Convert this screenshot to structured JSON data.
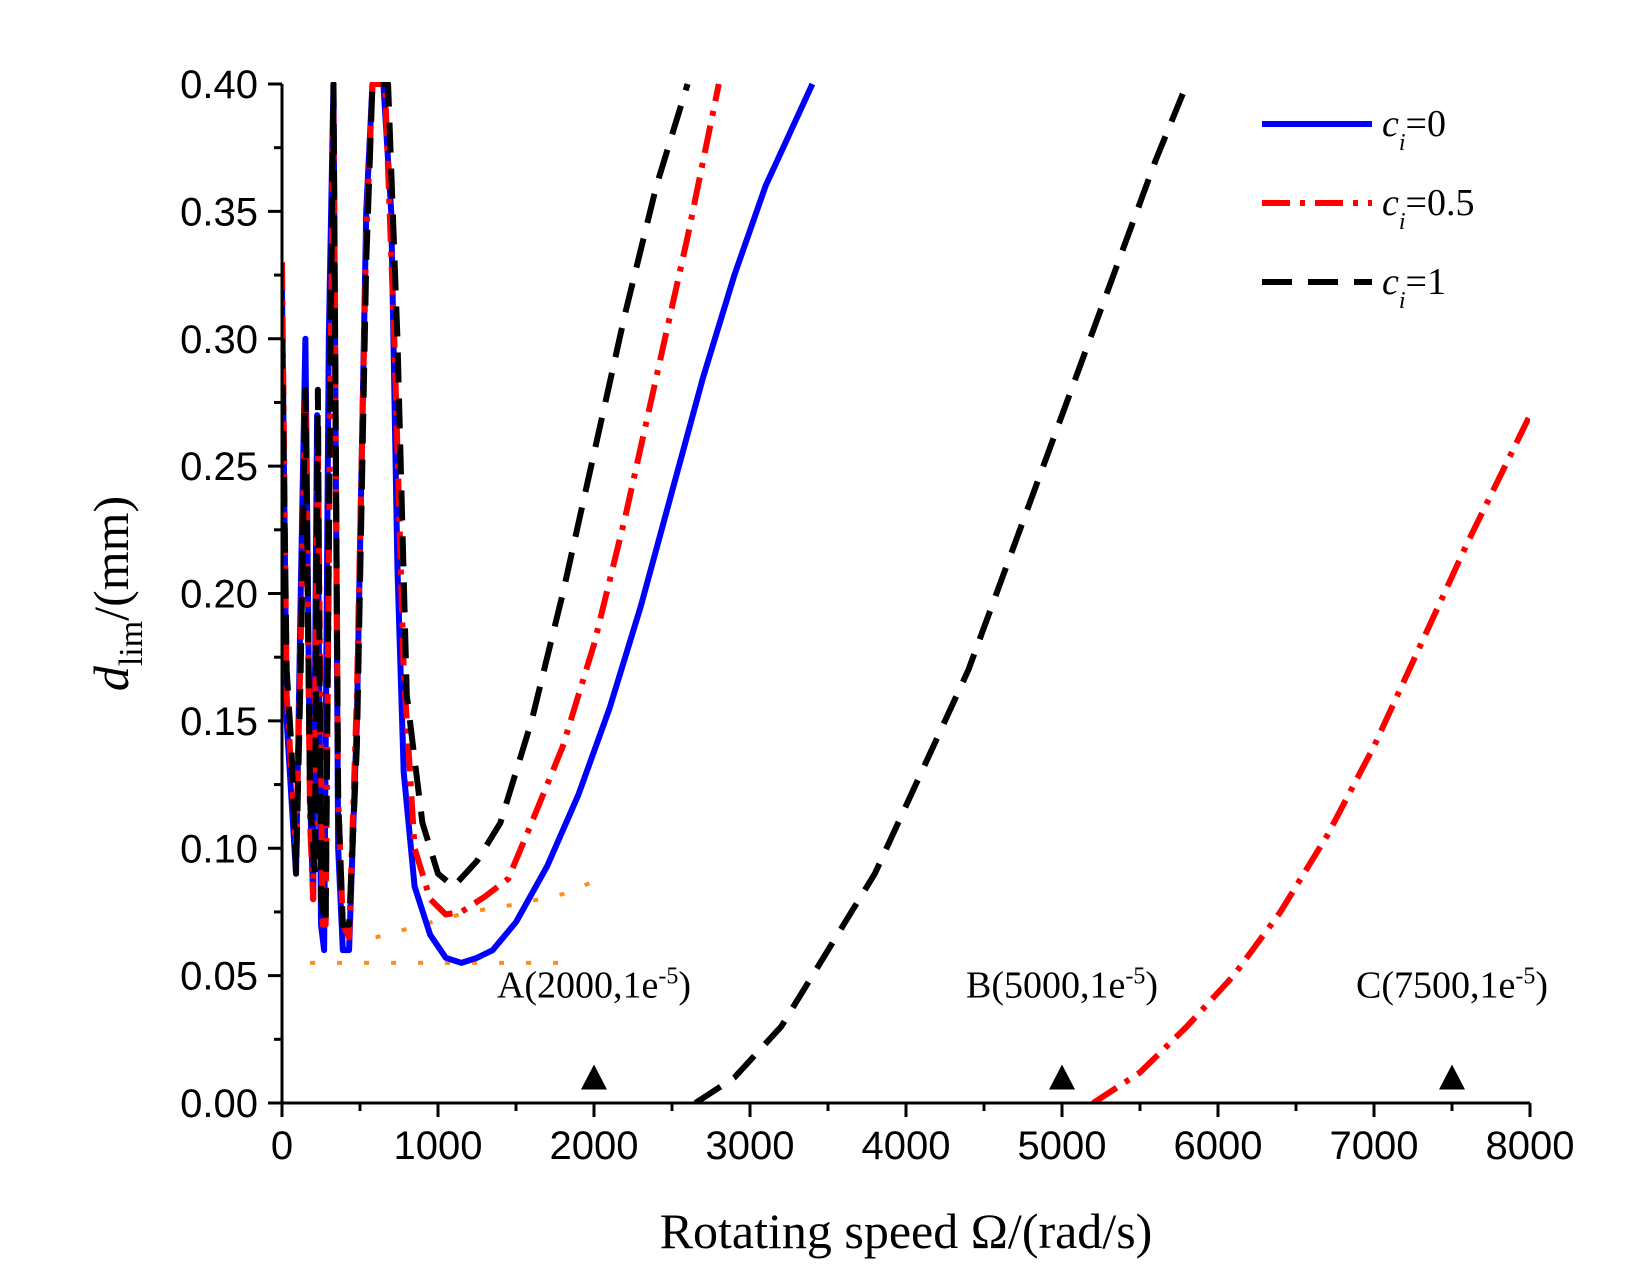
{
  "chart_data": {
    "type": "line",
    "xlabel": {
      "prefix": "Rotating speed ",
      "symbol": "Ω",
      "suffix": "/(rad/s)"
    },
    "ylabel": {
      "main": "d",
      "sub": "lim",
      "suffix": "/(mm)"
    },
    "xlim": [
      0,
      8000
    ],
    "ylim": [
      0,
      0.4
    ],
    "xticks": [
      0,
      1000,
      2000,
      3000,
      4000,
      5000,
      6000,
      7000,
      8000
    ],
    "xtick_labels": [
      "0",
      "1000",
      "2000",
      "3000",
      "4000",
      "5000",
      "6000",
      "7000",
      "8000"
    ],
    "yticks": [
      0,
      0.05,
      0.1,
      0.15,
      0.2,
      0.25,
      0.3,
      0.35,
      0.4
    ],
    "ytick_labels": [
      "0.00",
      "0.05",
      "0.10",
      "0.15",
      "0.20",
      "0.25",
      "0.30",
      "0.35",
      "0.40"
    ],
    "grid": false,
    "legend_position": "top-right",
    "series": [
      {
        "name": {
          "main": "c",
          "sub": "i",
          "rest": "=0"
        },
        "color": "#0000ff",
        "style": "solid",
        "points": [
          [
            0,
            0.32
          ],
          [
            30,
            0.15
          ],
          [
            60,
            0.12
          ],
          [
            90,
            0.09
          ],
          [
            120,
            0.2
          ],
          [
            150,
            0.3
          ],
          [
            180,
            0.12
          ],
          [
            200,
            0.08
          ],
          [
            225,
            0.27
          ],
          [
            250,
            0.07
          ],
          [
            270,
            0.06
          ],
          [
            300,
            0.3
          ],
          [
            330,
            0.4
          ],
          [
            360,
            0.1
          ],
          [
            390,
            0.06
          ],
          [
            430,
            0.06
          ],
          [
            480,
            0.15
          ],
          [
            540,
            0.35
          ],
          [
            580,
            0.4
          ],
          [
            650,
            0.4
          ],
          [
            700,
            0.35
          ],
          [
            740,
            0.21
          ],
          [
            780,
            0.13
          ],
          [
            850,
            0.085
          ],
          [
            950,
            0.066
          ],
          [
            1050,
            0.057
          ],
          [
            1150,
            0.055
          ],
          [
            1250,
            0.057
          ],
          [
            1350,
            0.06
          ],
          [
            1500,
            0.071
          ],
          [
            1700,
            0.093
          ],
          [
            1900,
            0.121
          ],
          [
            2100,
            0.155
          ],
          [
            2300,
            0.195
          ],
          [
            2500,
            0.24
          ],
          [
            2700,
            0.285
          ],
          [
            2900,
            0.325
          ],
          [
            3100,
            0.36
          ],
          [
            3250,
            0.38
          ],
          [
            3400,
            0.4
          ]
        ]
      },
      {
        "name": {
          "main": "c",
          "sub": "i",
          "rest": "=0.5"
        },
        "color": "#ff0000",
        "style": "dashdot",
        "points": [
          [
            0,
            0.33
          ],
          [
            30,
            0.16
          ],
          [
            60,
            0.13
          ],
          [
            90,
            0.1
          ],
          [
            120,
            0.18
          ],
          [
            150,
            0.28
          ],
          [
            180,
            0.11
          ],
          [
            200,
            0.08
          ],
          [
            230,
            0.26
          ],
          [
            260,
            0.07
          ],
          [
            280,
            0.07
          ],
          [
            310,
            0.28
          ],
          [
            330,
            0.39
          ],
          [
            360,
            0.12
          ],
          [
            390,
            0.07
          ],
          [
            430,
            0.065
          ],
          [
            480,
            0.16
          ],
          [
            540,
            0.34
          ],
          [
            580,
            0.4
          ],
          [
            660,
            0.4
          ],
          [
            720,
            0.3
          ],
          [
            780,
            0.17
          ],
          [
            850,
            0.1
          ],
          [
            950,
            0.08
          ],
          [
            1050,
            0.074
          ],
          [
            1150,
            0.075
          ],
          [
            1300,
            0.081
          ],
          [
            1450,
            0.088
          ],
          [
            1600,
            0.11
          ],
          [
            1800,
            0.14
          ],
          [
            2000,
            0.18
          ],
          [
            2200,
            0.23
          ],
          [
            2400,
            0.285
          ],
          [
            2600,
            0.34
          ],
          [
            2800,
            0.4
          ]
        ]
      },
      {
        "name": {
          "main": "c",
          "sub": "i",
          "rest": "=1"
        },
        "color": "#000000",
        "style": "dash",
        "points": [
          [
            0,
            0.3
          ],
          [
            30,
            0.17
          ],
          [
            60,
            0.14
          ],
          [
            90,
            0.09
          ],
          [
            120,
            0.17
          ],
          [
            150,
            0.28
          ],
          [
            180,
            0.12
          ],
          [
            210,
            0.09
          ],
          [
            230,
            0.28
          ],
          [
            250,
            0.08
          ],
          [
            280,
            0.07
          ],
          [
            310,
            0.29
          ],
          [
            330,
            0.4
          ],
          [
            360,
            0.12
          ],
          [
            390,
            0.07
          ],
          [
            430,
            0.07
          ],
          [
            480,
            0.14
          ],
          [
            540,
            0.33
          ],
          [
            580,
            0.4
          ],
          [
            680,
            0.4
          ],
          [
            740,
            0.3
          ],
          [
            800,
            0.16
          ],
          [
            900,
            0.11
          ],
          [
            1000,
            0.09
          ],
          [
            1100,
            0.085
          ],
          [
            1250,
            0.095
          ],
          [
            1400,
            0.11
          ],
          [
            1600,
            0.15
          ],
          [
            1800,
            0.2
          ],
          [
            2000,
            0.255
          ],
          [
            2200,
            0.31
          ],
          [
            2400,
            0.36
          ],
          [
            2600,
            0.4
          ]
        ]
      },
      {
        "name": {
          "main": "c",
          "sub": "i",
          "rest": "=1"
        },
        "color": "#000000",
        "style": "dash",
        "points": [
          [
            2650,
            0.0
          ],
          [
            2900,
            0.01
          ],
          [
            3200,
            0.03
          ],
          [
            3500,
            0.06
          ],
          [
            3800,
            0.09
          ],
          [
            4100,
            0.13
          ],
          [
            4400,
            0.17
          ],
          [
            4700,
            0.22
          ],
          [
            5000,
            0.27
          ],
          [
            5300,
            0.32
          ],
          [
            5600,
            0.37
          ],
          [
            5800,
            0.4
          ]
        ]
      },
      {
        "name": {
          "main": "c",
          "sub": "i",
          "rest": "=0.5"
        },
        "color": "#ff0000",
        "style": "dashdot",
        "points": [
          [
            5200,
            0.0
          ],
          [
            5500,
            0.012
          ],
          [
            5800,
            0.03
          ],
          [
            6100,
            0.05
          ],
          [
            6400,
            0.075
          ],
          [
            6700,
            0.105
          ],
          [
            7000,
            0.14
          ],
          [
            7300,
            0.18
          ],
          [
            7600,
            0.22
          ],
          [
            8000,
            0.27
          ]
        ]
      }
    ],
    "auxiliary_lines": [
      {
        "color": "#ff8c1a",
        "style": "dotted",
        "points": [
          [
            180,
            0.055
          ],
          [
            400,
            0.055
          ],
          [
            700,
            0.055
          ],
          [
            1000,
            0.055
          ],
          [
            1300,
            0.055
          ],
          [
            1800,
            0.055
          ]
        ]
      },
      {
        "color": "#ff8c1a",
        "style": "dotted",
        "points": [
          [
            600,
            0.065
          ],
          [
            900,
            0.07
          ],
          [
            1200,
            0.075
          ],
          [
            1500,
            0.078
          ],
          [
            1800,
            0.082
          ],
          [
            2000,
            0.087
          ]
        ]
      }
    ],
    "markers": [
      {
        "x": 2000,
        "y": 0.01,
        "label": {
          "main": "A(2000,1e",
          "sup": "-5",
          "end": ")"
        }
      },
      {
        "x": 5000,
        "y": 0.01,
        "label": {
          "main": "B(5000,1e",
          "sup": "-5",
          "end": ")"
        }
      },
      {
        "x": 7500,
        "y": 0.01,
        "label": {
          "main": "C(7500,1e",
          "sup": "-5",
          "end": ")"
        }
      }
    ],
    "legend": [
      {
        "main": "c",
        "sub": "i",
        "rest": "=0",
        "color": "#0000ff",
        "style": "solid"
      },
      {
        "main": "c",
        "sub": "i",
        "rest": "=0.5",
        "color": "#ff0000",
        "style": "dashdot"
      },
      {
        "main": "c",
        "sub": "i",
        "rest": "=1",
        "color": "#000000",
        "style": "dash"
      }
    ]
  }
}
